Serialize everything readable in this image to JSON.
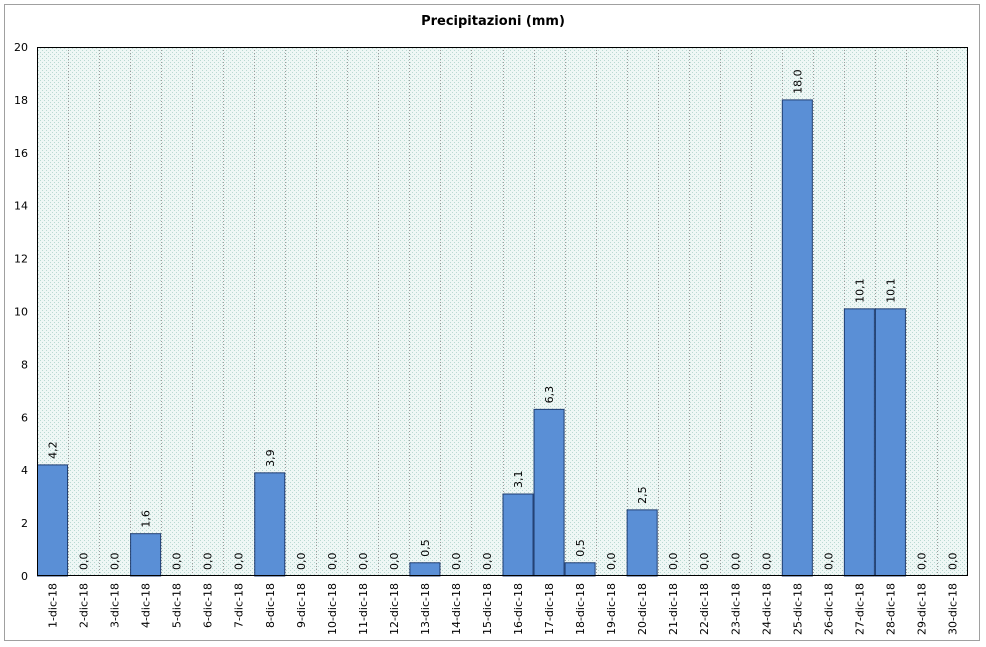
{
  "chart_data": {
    "type": "bar",
    "title": "Precipitazioni (mm)",
    "xlabel": "",
    "ylabel": "",
    "ylim": [
      0,
      20
    ],
    "yticks": [
      "0",
      "2",
      "4",
      "6",
      "8",
      "10",
      "12",
      "14",
      "16",
      "18",
      "20"
    ],
    "grid": "vertical dotted",
    "legend": "none",
    "bar_color": "#5a8fd6",
    "bar_edge_color": "#1f3d70",
    "plot_background": "#e6f2ef",
    "categories": [
      "1-dic-18",
      "2-dic-18",
      "3-dic-18",
      "4-dic-18",
      "5-dic-18",
      "6-dic-18",
      "7-dic-18",
      "8-dic-18",
      "9-dic-18",
      "10-dic-18",
      "11-dic-18",
      "12-dic-18",
      "13-dic-18",
      "14-dic-18",
      "15-dic-18",
      "16-dic-18",
      "17-dic-18",
      "18-dic-18",
      "19-dic-18",
      "20-dic-18",
      "21-dic-18",
      "22-dic-18",
      "23-dic-18",
      "24-dic-18",
      "25-dic-18",
      "26-dic-18",
      "27-dic-18",
      "28-dic-18",
      "29-dic-18",
      "30-dic-18"
    ],
    "values": [
      4.2,
      0,
      0,
      1.6,
      0,
      0,
      0,
      3.9,
      0,
      0,
      0,
      0,
      0.5,
      0,
      0,
      3.1,
      6.3,
      0.5,
      0,
      2.5,
      0,
      0,
      0,
      0,
      18.0,
      0,
      10.1,
      10.1,
      0,
      0
    ],
    "data_labels": [
      "4,2",
      "0,0",
      "0,0",
      "1,6",
      "0,0",
      "0,0",
      "0,0",
      "3,9",
      "0,0",
      "0,0",
      "0,0",
      "0,0",
      "0,5",
      "0,0",
      "0,0",
      "3,1",
      "6,3",
      "0,5",
      "0,0",
      "2,5",
      "0,0",
      "0,0",
      "0,0",
      "0,0",
      "18,0",
      "0,0",
      "10,1",
      "10,1",
      "0,0",
      "0,0"
    ]
  }
}
